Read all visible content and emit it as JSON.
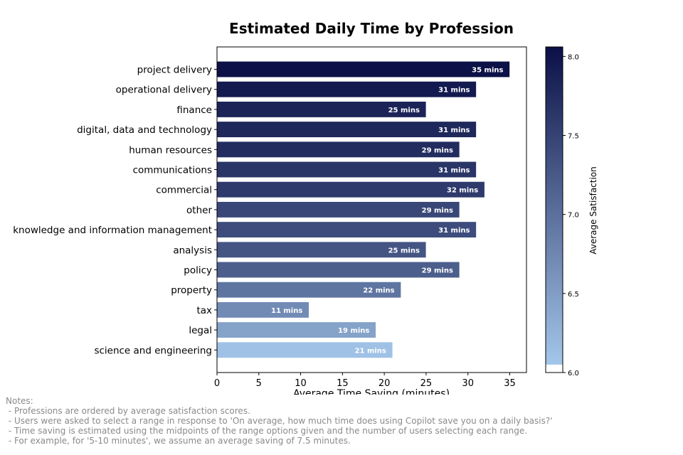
{
  "chart_data": {
    "type": "bar",
    "orientation": "horizontal",
    "title": "Estimated Daily Time by Profession",
    "xlabel": "Average Time Saving (minutes)",
    "xlim": [
      0,
      37
    ],
    "xticks": [
      "0",
      "5",
      "10",
      "15",
      "20",
      "25",
      "30",
      "35"
    ],
    "categories": [
      "project delivery",
      "operational delivery",
      "finance",
      "digital, data and technology",
      "human resources",
      "communications",
      "commercial",
      "other",
      "knowledge and information management",
      "analysis",
      "policy",
      "property",
      "tax",
      "legal",
      "science and engineering"
    ],
    "values": [
      35,
      31,
      25,
      31,
      29,
      31,
      32,
      29,
      31,
      25,
      29,
      22,
      11,
      19,
      21
    ],
    "value_labels": [
      "35 mins",
      "31 mins",
      "25 mins",
      "31 mins",
      "29 mins",
      "31 mins",
      "32 mins",
      "29 mins",
      "31 mins",
      "25 mins",
      "29 mins",
      "22 mins",
      "11 mins",
      "19 mins",
      "21 mins"
    ],
    "satisfaction": [
      8.05,
      7.95,
      7.85,
      7.8,
      7.75,
      7.65,
      7.6,
      7.45,
      7.4,
      7.3,
      7.2,
      6.95,
      6.7,
      6.45,
      6.1
    ],
    "colorbar": {
      "label": "Average Satisfaction",
      "range": [
        6.0,
        8.06
      ],
      "ticks": [
        "6.0",
        "6.5",
        "7.0",
        "7.5",
        "8.0"
      ],
      "color_low": "#a3c6ea",
      "color_high": "#0b1046"
    },
    "grid": false
  },
  "notes": {
    "heading": "Notes:",
    "lines": [
      " - Professions are ordered by average satisfaction scores.",
      " - Users were asked to select a range in response to 'On average, how much time does using Copilot save you on a daily basis?'",
      " - Time saving is estimated using the midpoints of the range options given and the number of users selecting each range.",
      " - For example, for '5-10 minutes', we assume an average saving of 7.5 minutes."
    ]
  }
}
